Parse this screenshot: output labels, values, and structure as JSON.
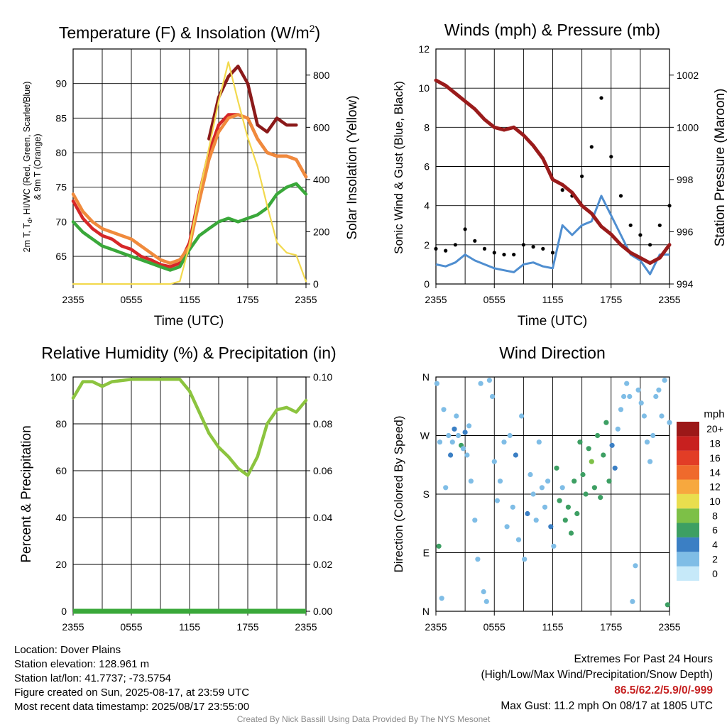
{
  "chart_data": [
    {
      "type": "line",
      "title": "Temperature (F) & Insolation (W/m2)",
      "title_main": "Temperature (F) & Insolation (W/m",
      "title_sup": "2",
      "title_close": ")",
      "ylabel_left_line1": "2m T, T",
      "ylabel_left_sub": "d",
      "ylabel_left_line1_rest": ", HI/WC (Red, Green, Scarlet/Blue)",
      "ylabel_left_line2": "& 9m T (Orange)",
      "ylabel_right": "Solar Insolation (Yellow)",
      "xlabel": "Time (UTC)",
      "x_ticks": [
        "2355",
        "0555",
        "1155",
        "1755",
        "2355"
      ],
      "y_left_ticks": [
        65,
        70,
        75,
        80,
        85,
        90
      ],
      "y_right_ticks": [
        0,
        200,
        400,
        600,
        800
      ],
      "ylim_left": [
        61,
        95
      ],
      "ylim_right": [
        0,
        900
      ],
      "x": [
        0,
        1,
        2,
        3,
        4,
        5,
        6,
        7,
        8,
        9,
        10,
        11,
        12,
        13,
        14,
        15,
        16,
        17,
        18,
        19,
        20,
        21,
        22,
        23,
        24
      ],
      "series": [
        {
          "name": "2m T",
          "color": "#d62728",
          "values": [
            73,
            70.5,
            69,
            68,
            67.5,
            66.5,
            66,
            65,
            64.5,
            63.8,
            63.5,
            64,
            67,
            74,
            80,
            84,
            85.5,
            85.5,
            85,
            82,
            80,
            79.5,
            79.5,
            79,
            76.5
          ]
        },
        {
          "name": "Dewpoint",
          "color": "#3aa83a",
          "values": [
            70,
            68.5,
            67.5,
            66.5,
            66,
            65.5,
            65,
            64.5,
            64,
            63.5,
            63,
            63.5,
            66,
            68,
            69,
            70,
            70.5,
            70,
            70.5,
            71,
            72,
            74,
            75,
            75.5,
            74
          ]
        },
        {
          "name": "HI/WC",
          "color": "#8b1a1a",
          "values": [
            null,
            null,
            null,
            null,
            null,
            null,
            null,
            null,
            null,
            null,
            null,
            null,
            null,
            null,
            82,
            88,
            91,
            92.5,
            90,
            84,
            83,
            85,
            84,
            84,
            null
          ]
        },
        {
          "name": "9m T",
          "color": "#f08a3c",
          "values": [
            74,
            71.5,
            70,
            69,
            68.5,
            68,
            67.5,
            66.5,
            65.5,
            64.5,
            64,
            64.5,
            66.5,
            73,
            79,
            83,
            85,
            85.5,
            85,
            82,
            80,
            79.5,
            79.5,
            79,
            76.5
          ]
        },
        {
          "name": "Solar Insolation",
          "color": "#f2d94e",
          "axis": "right",
          "values": [
            0,
            0,
            0,
            0,
            0,
            0,
            0,
            0,
            0,
            0,
            0,
            10,
            150,
            350,
            520,
            700,
            850,
            700,
            560,
            450,
            300,
            160,
            120,
            110,
            10
          ]
        }
      ]
    },
    {
      "type": "scatter",
      "title": "Winds (mph) & Pressure (mb)",
      "ylabel_left": "Sonic Wind & Gust (Blue, Black)",
      "ylabel_right": "Station Pressure (Maroon)",
      "xlabel": "Time (UTC)",
      "x_ticks": [
        "2355",
        "0555",
        "1155",
        "1755",
        "2355"
      ],
      "y_left_ticks": [
        0,
        2,
        4,
        6,
        8,
        10,
        12
      ],
      "y_right_ticks": [
        994,
        996,
        998,
        1000,
        1002
      ],
      "ylim_left": [
        0,
        12
      ],
      "ylim_right": [
        994,
        1003
      ],
      "x": [
        0,
        1,
        2,
        3,
        4,
        5,
        6,
        7,
        8,
        9,
        10,
        11,
        12,
        13,
        14,
        15,
        16,
        17,
        18,
        19,
        20,
        21,
        22,
        23,
        24
      ],
      "series": [
        {
          "name": "Sonic Wind",
          "color": "#4f8ed0",
          "values": [
            1.0,
            0.9,
            1.1,
            1.5,
            1.2,
            1.0,
            0.8,
            0.7,
            0.6,
            1.0,
            1.1,
            0.9,
            0.8,
            3.0,
            2.5,
            3.0,
            3.2,
            4.5,
            3.5,
            2.5,
            1.5,
            1.2,
            0.5,
            1.5,
            1.5
          ]
        },
        {
          "name": "Gust",
          "color": "#000000",
          "values": [
            1.8,
            1.7,
            2.0,
            2.8,
            2.2,
            1.8,
            1.6,
            1.5,
            1.5,
            2.0,
            1.9,
            1.8,
            1.6,
            4.8,
            4.5,
            5.5,
            7.0,
            9.5,
            6.5,
            4.5,
            3.0,
            2.5,
            2.0,
            3.0,
            4.0
          ]
        },
        {
          "name": "Station Pressure",
          "color": "#9a1b1b",
          "axis": "right",
          "values": [
            1001.8,
            1001.6,
            1001.3,
            1001.0,
            1000.7,
            1000.3,
            1000.0,
            999.9,
            1000.0,
            999.7,
            999.3,
            998.8,
            998.0,
            997.8,
            997.5,
            997.0,
            996.7,
            996.2,
            995.9,
            995.5,
            995.2,
            995.0,
            994.8,
            995.0,
            995.5
          ]
        }
      ]
    },
    {
      "type": "line",
      "title": "Relative Humidity (%) & Precipitation (in)",
      "ylabel_left": "Percent & Precipitation",
      "x_ticks": [
        "2355",
        "0555",
        "1155",
        "1755",
        "2355"
      ],
      "y_left_ticks": [
        0,
        20,
        40,
        60,
        80,
        100
      ],
      "y_right_ticks": [
        "0.00",
        "0.02",
        "0.04",
        "0.06",
        "0.08",
        "0.10"
      ],
      "ylim_left": [
        0,
        100
      ],
      "ylim_right": [
        0,
        0.1
      ],
      "x": [
        0,
        1,
        2,
        3,
        4,
        5,
        6,
        7,
        8,
        9,
        10,
        11,
        12,
        13,
        14,
        15,
        16,
        17,
        18,
        19,
        20,
        21,
        22,
        23,
        24
      ],
      "series": [
        {
          "name": "Relative Humidity",
          "color": "#8cc43f",
          "values": [
            91,
            98,
            98,
            96,
            98,
            98.5,
            99,
            99,
            99,
            99,
            99,
            99,
            94,
            85,
            76,
            70,
            66,
            61,
            58,
            66,
            80,
            86,
            87,
            85,
            90
          ]
        },
        {
          "name": "Precipitation",
          "color": "#3aa83a",
          "axis": "right",
          "values": [
            0,
            0,
            0,
            0,
            0,
            0,
            0,
            0,
            0,
            0,
            0,
            0,
            0,
            0,
            0,
            0,
            0,
            0,
            0,
            0,
            0,
            0,
            0,
            0,
            0
          ]
        }
      ]
    },
    {
      "type": "scatter",
      "title": "Wind Direction",
      "ylabel_left": "Direction (Colored By Speed)",
      "x_ticks": [
        "2355",
        "0555",
        "1155",
        "1755",
        "2355"
      ],
      "y_ticks": [
        "N",
        "E",
        "S",
        "W",
        "N"
      ],
      "ylim": [
        0,
        360
      ],
      "colorbar_title": "mph",
      "colorbar_labels": [
        "0",
        "2",
        "4",
        "6",
        "8",
        "10",
        "12",
        "14",
        "16",
        "18",
        "20+"
      ],
      "colorbar_colors": [
        "#c6e9f9",
        "#7fbde6",
        "#3b7fc4",
        "#3d9f63",
        "#7dc047",
        "#e9de4e",
        "#f7a83e",
        "#ef6a2c",
        "#e23d26",
        "#c8201f",
        "#9c1818"
      ],
      "points": [
        [
          0.1,
          350,
          1
        ],
        [
          0.3,
          100,
          3
        ],
        [
          0.4,
          260,
          1
        ],
        [
          0.6,
          20,
          1
        ],
        [
          0.8,
          310,
          1
        ],
        [
          1.0,
          190,
          1
        ],
        [
          1.3,
          270,
          1
        ],
        [
          1.5,
          240,
          2
        ],
        [
          1.7,
          260,
          1
        ],
        [
          1.9,
          280,
          2
        ],
        [
          2.1,
          300,
          1
        ],
        [
          2.3,
          270,
          1
        ],
        [
          2.6,
          255,
          3
        ],
        [
          2.8,
          250,
          1
        ],
        [
          3.0,
          275,
          2
        ],
        [
          3.2,
          240,
          1
        ],
        [
          3.4,
          285,
          1
        ],
        [
          3.6,
          200,
          1
        ],
        [
          4.0,
          140,
          1
        ],
        [
          4.3,
          80,
          1
        ],
        [
          4.6,
          350,
          1
        ],
        [
          4.9,
          30,
          1
        ],
        [
          5.2,
          15,
          1
        ],
        [
          5.5,
          355,
          1
        ],
        [
          5.8,
          330,
          1
        ],
        [
          6.0,
          230,
          1
        ],
        [
          6.3,
          170,
          1
        ],
        [
          6.6,
          200,
          1
        ],
        [
          7.0,
          260,
          1
        ],
        [
          7.3,
          130,
          1
        ],
        [
          7.6,
          270,
          1
        ],
        [
          7.9,
          160,
          1
        ],
        [
          8.2,
          240,
          2
        ],
        [
          8.5,
          110,
          1
        ],
        [
          8.8,
          300,
          1
        ],
        [
          9.1,
          80,
          1
        ],
        [
          9.4,
          150,
          2
        ],
        [
          9.7,
          210,
          1
        ],
        [
          10.0,
          180,
          1
        ],
        [
          10.3,
          140,
          1
        ],
        [
          10.6,
          260,
          1
        ],
        [
          10.9,
          190,
          1
        ],
        [
          11.2,
          160,
          1
        ],
        [
          11.5,
          200,
          1
        ],
        [
          11.8,
          130,
          2
        ],
        [
          12.1,
          100,
          1
        ],
        [
          12.4,
          220,
          3
        ],
        [
          12.7,
          170,
          3
        ],
        [
          13.0,
          190,
          1
        ],
        [
          13.3,
          140,
          3
        ],
        [
          13.6,
          160,
          3
        ],
        [
          13.9,
          120,
          3
        ],
        [
          14.2,
          200,
          3
        ],
        [
          14.5,
          150,
          3
        ],
        [
          14.8,
          260,
          3
        ],
        [
          15.1,
          210,
          3
        ],
        [
          15.4,
          180,
          3
        ],
        [
          15.7,
          250,
          3
        ],
        [
          16.0,
          230,
          4
        ],
        [
          16.3,
          190,
          3
        ],
        [
          16.6,
          270,
          3
        ],
        [
          16.9,
          175,
          3
        ],
        [
          17.2,
          240,
          3
        ],
        [
          17.5,
          290,
          3
        ],
        [
          17.8,
          200,
          3
        ],
        [
          18.1,
          255,
          2
        ],
        [
          18.4,
          220,
          2
        ],
        [
          18.7,
          280,
          1
        ],
        [
          19.0,
          310,
          1
        ],
        [
          19.3,
          330,
          1
        ],
        [
          19.6,
          350,
          1
        ],
        [
          19.9,
          330,
          1
        ],
        [
          20.2,
          15,
          1
        ],
        [
          20.5,
          70,
          1
        ],
        [
          20.8,
          340,
          1
        ],
        [
          21.1,
          320,
          1
        ],
        [
          21.4,
          300,
          1
        ],
        [
          21.7,
          260,
          1
        ],
        [
          22.0,
          230,
          1
        ],
        [
          22.3,
          270,
          1
        ],
        [
          22.6,
          330,
          1
        ],
        [
          22.9,
          340,
          1
        ],
        [
          23.2,
          300,
          1
        ],
        [
          23.5,
          355,
          1
        ],
        [
          23.8,
          10,
          3
        ],
        [
          24.0,
          290,
          1
        ]
      ]
    }
  ],
  "footer": {
    "location": "Location: Dover Plains",
    "elevation": "Station elevation: 128.961 m",
    "latlon": "Station lat/lon: 41.7737; -73.5754",
    "created": "Figure created on Sun, 2025-08-17, at 23:59 UTC",
    "recent": "Most recent data timestamp: 2025/08/17 23:55:00",
    "extremes_title": "Extremes For Past 24 Hours",
    "extremes_legend": "(High/Low/Max Wind/Precipitation/Snow Depth)",
    "extremes_values": "86.5/62.2/5.9/0/-999",
    "max_gust": "Max Gust: 11.2 mph On 08/17 at 1805 UTC",
    "credit": "Created By Nick Bassill Using Data Provided By The NYS Mesonet"
  }
}
